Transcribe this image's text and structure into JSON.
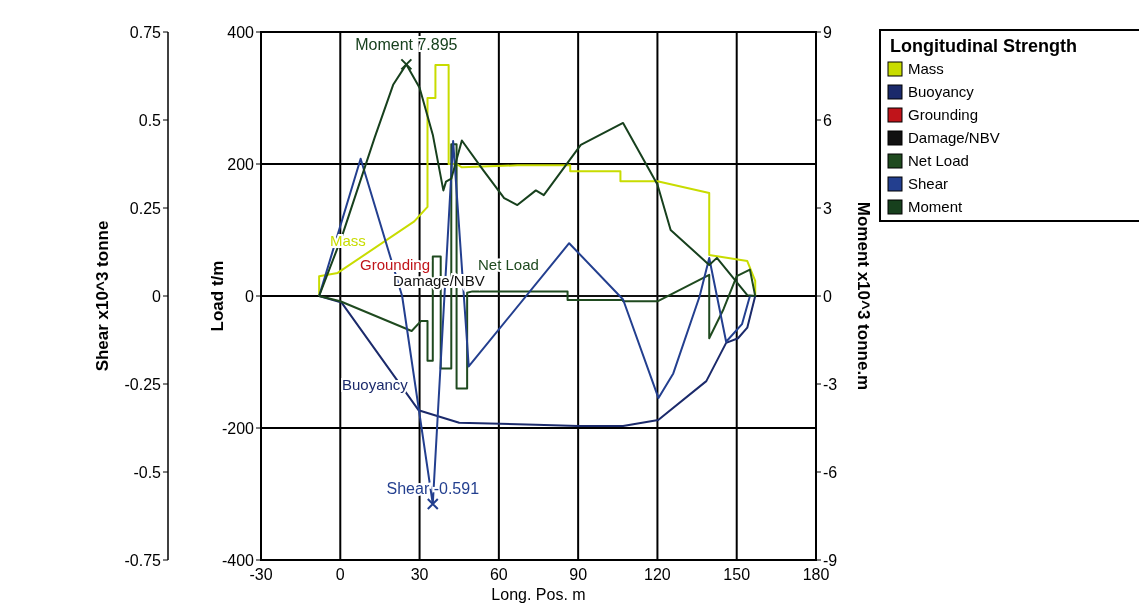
{
  "chart_data": {
    "type": "line",
    "title": "Longitudinal Strength",
    "xlabel": "Long. Pos.  m",
    "ylabel": "Load  t/m",
    "y2label": "Shear  x10^3 tonne",
    "y3label": "Moment  x10^3 tonne.m",
    "xlim": [
      -30,
      180
    ],
    "xticks": [
      -30,
      0,
      30,
      60,
      90,
      120,
      150,
      180
    ],
    "ylim": [
      -400,
      400
    ],
    "yticks": [
      -400,
      -200,
      0,
      200,
      400
    ],
    "y2lim": [
      -0.75,
      0.75
    ],
    "y2ticks": [
      -0.75,
      -0.5,
      -0.25,
      0,
      0.25,
      0.5,
      0.75
    ],
    "y3lim": [
      -9,
      9
    ],
    "y3ticks": [
      -9,
      -6,
      -3,
      0,
      3,
      6,
      9
    ],
    "grid": true,
    "legend": "top right",
    "annotations": [
      "Moment 7.895",
      "Shear -0.591"
    ],
    "series": [
      {
        "name": "Mass",
        "color": "#c8dc00",
        "x": [
          -8,
          -8,
          -1,
          28,
          33,
          33,
          36,
          36,
          41,
          41,
          44,
          46,
          67,
          87,
          87,
          106,
          106,
          120,
          139.6,
          139.6,
          154,
          157,
          157
        ],
        "values": [
          0,
          30,
          35,
          113,
          135,
          300,
          300,
          350,
          350,
          200,
          200,
          195,
          198,
          198,
          189,
          189,
          174,
          174,
          156,
          62,
          53,
          23,
          0
        ]
      },
      {
        "name": "Buoyancy",
        "color": "#1b2a6b",
        "x": [
          -8,
          0.5,
          29.6,
          45,
          74,
          90,
          107,
          120.3,
          138.5,
          146,
          150.5,
          154,
          157
        ],
        "values": [
          0,
          -10,
          -173,
          -192,
          -195,
          -197,
          -197,
          -188,
          -129,
          -71,
          -64,
          -48,
          0
        ]
      },
      {
        "name": "Grounding",
        "color": "#c0141a"
      },
      {
        "name": "Damage/NBV",
        "color": "#111111",
        "x": [
          -8,
          157
        ],
        "values": [
          0,
          0
        ]
      },
      {
        "name": "Net Load",
        "color": "#1f4a1f",
        "x": [
          -8,
          0,
          27,
          30.5,
          33,
          33,
          35,
          35,
          38,
          38,
          42,
          42,
          44,
          44,
          48,
          48,
          50,
          67,
          86,
          86,
          107,
          107,
          120,
          139.6,
          139.6,
          145,
          150,
          155,
          157
        ],
        "values": [
          0,
          -8,
          -53,
          -38,
          -38,
          -98,
          -98,
          60,
          60,
          -110,
          -110,
          230,
          230,
          -140,
          -140,
          5,
          7,
          7,
          7,
          -6,
          -6,
          -8,
          -8,
          32,
          -64,
          -20,
          30,
          40,
          0
        ]
      },
      {
        "name": "Shear",
        "color": "#233f8f",
        "axis": "y2",
        "x": [
          -8,
          7.7,
          23.4,
          35,
          42.7,
          48.6,
          86.6,
          107,
          120.4,
          126,
          136,
          139.6,
          146,
          152,
          155,
          157
        ],
        "values": [
          0,
          0.39,
          0,
          -0.591,
          0.44,
          -0.2,
          0.15,
          -0.01,
          -0.29,
          -0.22,
          0,
          0.108,
          -0.13,
          -0.08,
          0,
          0
        ]
      },
      {
        "name": "Moment",
        "color": "#17401d",
        "axis": "y3",
        "x": [
          -8,
          0.5,
          13,
          20,
          25,
          30,
          35,
          39,
          40,
          42,
          46,
          54,
          62,
          67,
          74,
          77,
          91,
          107,
          120,
          125,
          139.6,
          142.5,
          154,
          157
        ],
        "values": [
          0,
          2.0,
          5.4,
          7.2,
          7.895,
          7.1,
          5.5,
          3.6,
          3.9,
          4.0,
          5.3,
          4.3,
          3.34,
          3.1,
          3.6,
          3.44,
          5.15,
          5.9,
          3.8,
          2.25,
          1.06,
          1.3,
          0.03,
          0
        ]
      }
    ]
  }
}
